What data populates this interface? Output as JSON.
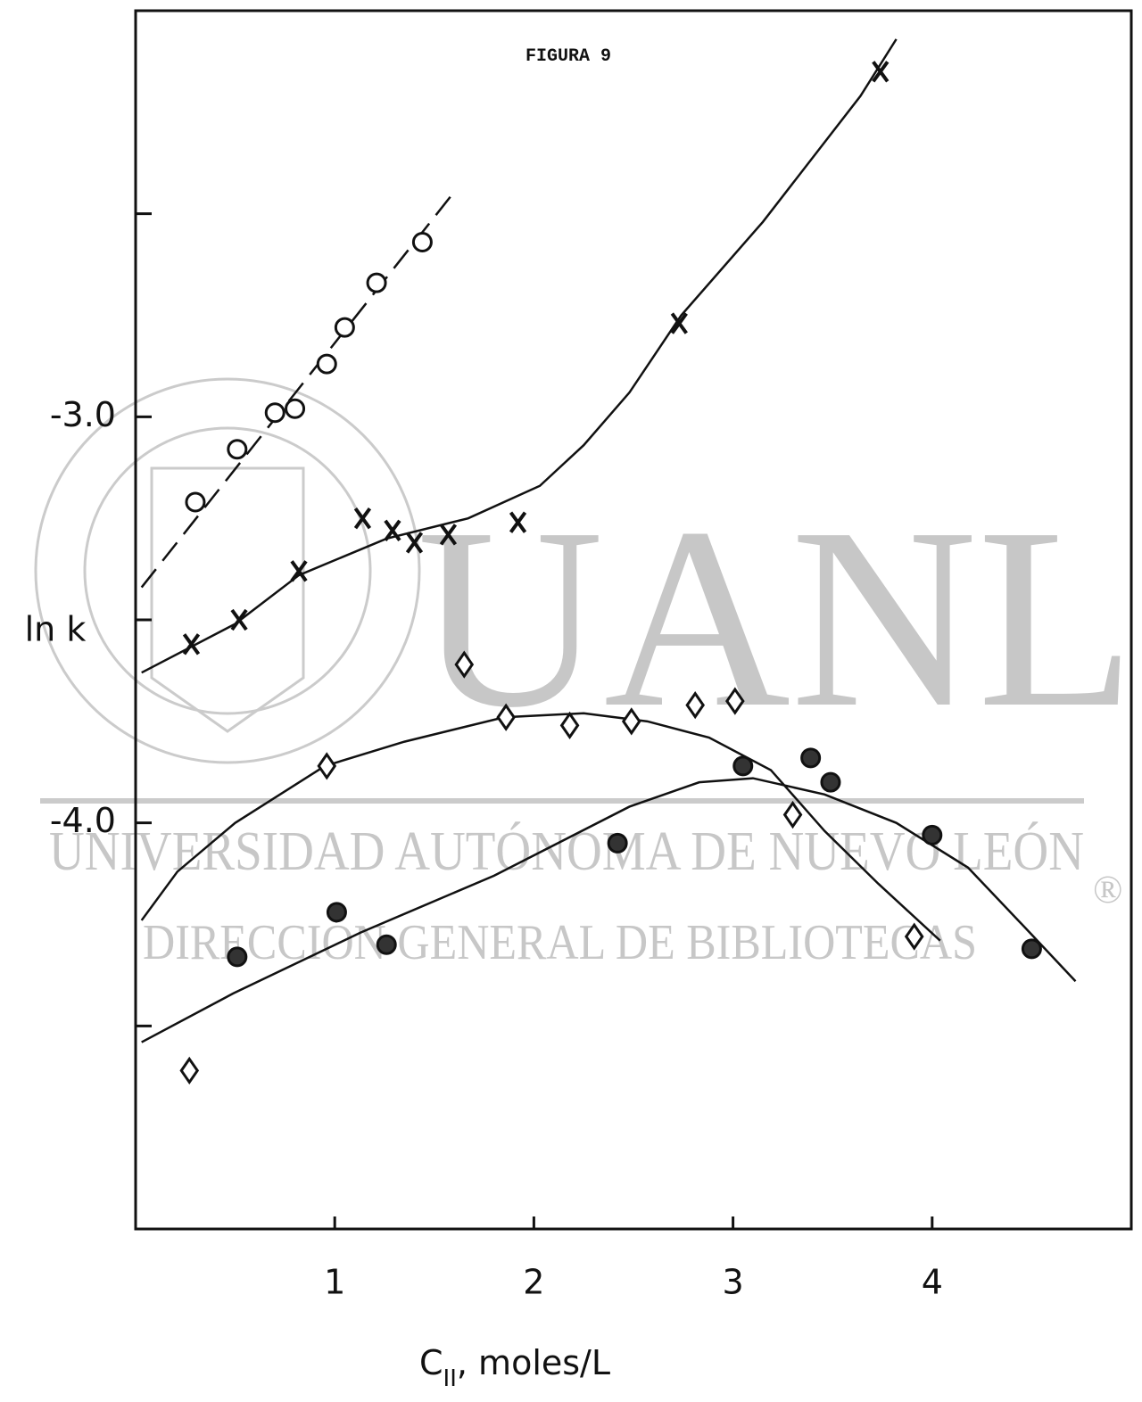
{
  "chart_data": {
    "type": "scatter",
    "title": "FIGURA 9",
    "ylabel": "ln k",
    "xlabel": {
      "main": "C",
      "sub": "II",
      "rest": ", moles/L"
    },
    "xlim": [
      0,
      5
    ],
    "ylim": [
      -5,
      -2
    ],
    "xticks": [
      1,
      2,
      3,
      4
    ],
    "yticks": [
      {
        "value": -3,
        "label": "-3.0"
      },
      {
        "value": -4,
        "label": "-4.0"
      }
    ],
    "yminor_ticks": [
      -2.5,
      -3.5,
      -4.5
    ],
    "watermark": {
      "logo": "UANL",
      "line1": "UNIVERSIDAD AUTÓNOMA DE NUEVO LEÓN",
      "line2": "DIRECCIÓN GENERAL DE BIBLIOTECAS",
      "mark": "®"
    },
    "series": [
      {
        "marker": "open-circle",
        "color": "#111111",
        "x": [
          0.3,
          0.51,
          0.7,
          0.8,
          0.96,
          1.05,
          1.21,
          1.44
        ],
        "values": [
          -3.21,
          -3.08,
          -2.99,
          -2.98,
          -2.87,
          -2.78,
          -2.67,
          -2.57
        ],
        "curve_dash": true,
        "curve_x": [
          0.03,
          1.61
        ],
        "curve_values": [
          -3.42,
          -2.44
        ]
      },
      {
        "marker": "cross",
        "color": "#111111",
        "x": [
          0.28,
          0.52,
          0.82,
          1.14,
          1.29,
          1.4,
          1.57,
          1.92,
          2.73,
          3.74
        ],
        "values": [
          -3.56,
          -3.5,
          -3.38,
          -3.25,
          -3.28,
          -3.31,
          -3.29,
          -3.26,
          -2.77,
          -2.15
        ],
        "curve_dash": false,
        "curve_x": [
          0.03,
          0.5,
          0.82,
          1.26,
          1.67,
          2.03,
          2.25,
          2.48,
          2.74,
          3.15,
          3.64,
          3.82
        ],
        "curve_values": [
          -3.63,
          -3.51,
          -3.39,
          -3.3,
          -3.25,
          -3.17,
          -3.07,
          -2.94,
          -2.75,
          -2.52,
          -2.21,
          -2.07
        ]
      },
      {
        "marker": "diamond",
        "color": "#111111",
        "x": [
          0.27,
          0.96,
          1.65,
          1.86,
          2.18,
          2.49,
          2.81,
          3.01,
          3.3,
          3.91
        ],
        "values": [
          -4.61,
          -3.86,
          -3.61,
          -3.74,
          -3.76,
          -3.75,
          -3.71,
          -3.7,
          -3.98,
          -4.28
        ],
        "curve_dash": false,
        "curve_x": [
          0.03,
          0.21,
          0.5,
          0.95,
          1.35,
          1.85,
          2.25,
          2.57,
          2.88,
          3.19,
          3.46,
          3.73,
          4.04
        ],
        "curve_values": [
          -4.24,
          -4.12,
          -4.0,
          -3.86,
          -3.8,
          -3.74,
          -3.73,
          -3.75,
          -3.79,
          -3.87,
          -4.02,
          -4.15,
          -4.29
        ]
      },
      {
        "marker": "filled-circle",
        "color": "#111111",
        "x": [
          0.51,
          1.01,
          1.26,
          2.42,
          3.05,
          3.39,
          3.49,
          4.0,
          4.5
        ],
        "values": [
          -4.33,
          -4.22,
          -4.3,
          -4.05,
          -3.86,
          -3.84,
          -3.9,
          -4.03,
          -4.31
        ],
        "curve_dash": false,
        "curve_x": [
          0.03,
          0.49,
          1.13,
          1.8,
          2.48,
          2.83,
          3.1,
          3.46,
          3.82,
          4.18,
          4.49,
          4.72
        ],
        "curve_values": [
          -4.54,
          -4.42,
          -4.27,
          -4.13,
          -3.96,
          -3.9,
          -3.89,
          -3.93,
          -4.0,
          -4.11,
          -4.27,
          -4.39
        ]
      }
    ]
  }
}
